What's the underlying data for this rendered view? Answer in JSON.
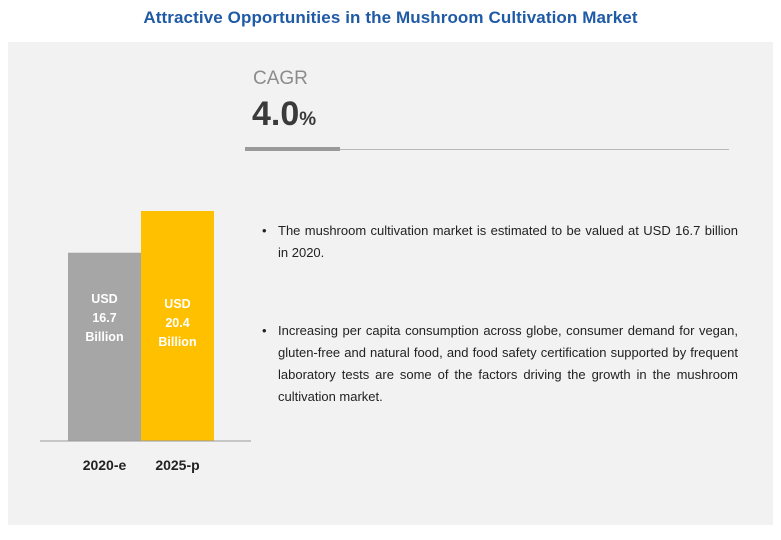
{
  "title": "Attractive Opportunities in the Mushroom Cultivation Market",
  "cagr": {
    "label": "CAGR",
    "value": "4.0",
    "unit": "%"
  },
  "bullets": [
    "The mushroom cultivation market is estimated to be valued at USD 16.7 billion in 2020.",
    "Increasing per capita consumption across globe, consumer demand for vegan, gluten-free and natural food, and food safety certification supported by frequent laboratory tests are some of the factors driving the growth in the mushroom cultivation market."
  ],
  "bullet_glyph": "•",
  "colors": {
    "title": "#1f5aa6",
    "bar_2020": "#a6a6a6",
    "bar_2025": "#ffc000",
    "bar_label_2020": "#ffffff",
    "bar_label_2025": "#ffffff"
  },
  "chart_data": {
    "type": "bar",
    "categories": [
      "2020-e",
      "2025-p"
    ],
    "values": [
      16.7,
      20.4
    ],
    "bar_labels": [
      [
        "USD",
        "16.7",
        "Billion"
      ],
      [
        "USD",
        "20.4",
        "Billion"
      ]
    ],
    "title": "",
    "xlabel": "",
    "ylabel": "",
    "ylim": [
      0,
      20.4
    ],
    "grid": false,
    "legend": "none"
  }
}
